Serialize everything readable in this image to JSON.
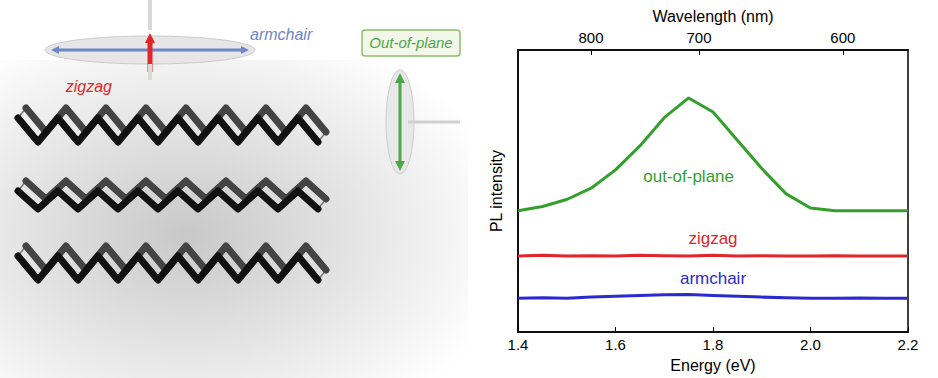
{
  "diagram": {
    "armchair": "armchair",
    "zigzag": "zigzag",
    "out_of_plane": "Out-of-plane"
  },
  "chart_data": {
    "type": "line",
    "x_label": "Energy (eV)",
    "y_label": "PL intensity",
    "x2_label": "Wavelength (nm)",
    "x": [
      1.4,
      1.45,
      1.5,
      1.55,
      1.6,
      1.65,
      1.7,
      1.75,
      1.8,
      1.85,
      1.9,
      1.95,
      2.0,
      2.05,
      2.1,
      2.15,
      2.2
    ],
    "series": [
      {
        "name": "out-of-plane",
        "color": "#33a02c",
        "values": [
          4.3,
          4.45,
          4.7,
          5.1,
          5.75,
          6.6,
          7.6,
          8.3,
          7.8,
          6.8,
          5.8,
          4.9,
          4.4,
          4.3,
          4.3,
          4.3,
          4.3
        ]
      },
      {
        "name": "zigzag",
        "color": "#e0262a",
        "values": [
          2.7,
          2.72,
          2.7,
          2.71,
          2.7,
          2.72,
          2.71,
          2.7,
          2.72,
          2.7,
          2.71,
          2.7,
          2.7,
          2.71,
          2.7,
          2.7,
          2.7
        ]
      },
      {
        "name": "armchair",
        "color": "#2a2ad0",
        "values": [
          1.2,
          1.22,
          1.2,
          1.24,
          1.27,
          1.3,
          1.32,
          1.33,
          1.3,
          1.27,
          1.24,
          1.22,
          1.2,
          1.2,
          1.21,
          1.2,
          1.2
        ]
      }
    ],
    "xlim": [
      1.4,
      2.2
    ],
    "xticks": [
      1.4,
      1.6,
      1.8,
      {
        "value": 2,
        "label": "2.0"
      },
      2.2
    ],
    "x2lim": [
      1.4,
      2.2
    ],
    "x2ticks": [
      {
        "value": 1.5498,
        "label": "800"
      },
      {
        "value": 1.7712,
        "label": "700"
      },
      {
        "value": 2.0664,
        "label": "600"
      }
    ],
    "ylim": [
      0,
      10
    ],
    "tick_labels": "x",
    "grid": false
  }
}
